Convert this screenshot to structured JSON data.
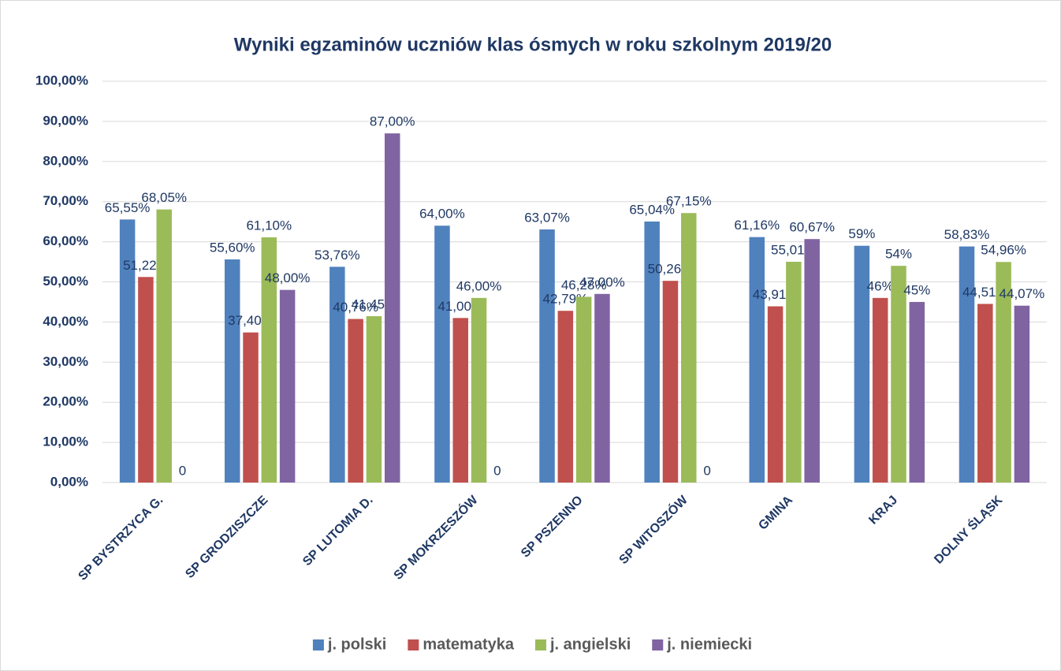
{
  "chart_data": {
    "type": "bar",
    "title": "Wyniki egzaminów uczniów klas ósmych w roku szkolnym 2019/20",
    "categories": [
      "SP BYSTRZYCA G.",
      "SP GRODZISZCZE",
      "SP LUTOMIA D.",
      "SP MOKRZESZÓW",
      "SP PSZENNO",
      "SP WITOSZÓW",
      "GMINA",
      "KRAJ",
      "DOLNY ŚLĄSK"
    ],
    "series": [
      {
        "name": "j. polski",
        "color": "#4f81bd",
        "values": [
          65.55,
          55.6,
          53.76,
          64.0,
          63.07,
          65.04,
          61.16,
          59,
          58.83
        ],
        "value_labels": [
          "65,55%",
          "55,60%",
          "53,76%",
          "64,00%",
          "63,07%",
          "65,04%",
          "61,16%",
          "59%",
          "58,83%"
        ]
      },
      {
        "name": "matematyka",
        "color": "#c0504d",
        "values": [
          51.22,
          37.4,
          40.76,
          41.0,
          42.79,
          50.26,
          43.91,
          46,
          44.51
        ],
        "value_labels": [
          "51,22%",
          "37,40%",
          "40,76%",
          "41,00%",
          "42,79%",
          "50,26%",
          "43,91%",
          "46%",
          "44,51%"
        ]
      },
      {
        "name": "j. angielski",
        "color": "#9bbb59",
        "values": [
          68.05,
          61.1,
          41.45,
          46.0,
          46.28,
          67.15,
          55.01,
          54,
          54.96
        ],
        "value_labels": [
          "68,05%",
          "61,10%",
          "41,45%",
          "46,00%",
          "46,28%",
          "67,15%",
          "55,01%",
          "54%",
          "54,96%"
        ]
      },
      {
        "name": "j. niemiecki",
        "color": "#8064a2",
        "values": [
          0,
          48.0,
          87.0,
          0,
          47.0,
          0,
          60.67,
          45,
          44.07
        ],
        "value_labels": [
          "0",
          "48,00%",
          "87,00%",
          "0",
          "47,00%",
          "0",
          "60,67%",
          "45%",
          "44,07%"
        ]
      }
    ],
    "ylim": [
      0,
      100
    ],
    "yticks": [
      {
        "value": 0,
        "label": "0,00%"
      },
      {
        "value": 10,
        "label": "10,00%"
      },
      {
        "value": 20,
        "label": "20,00%"
      },
      {
        "value": 30,
        "label": "30,00%"
      },
      {
        "value": 40,
        "label": "40,00%"
      },
      {
        "value": 50,
        "label": "50,00%"
      },
      {
        "value": 60,
        "label": "60,00%"
      },
      {
        "value": 70,
        "label": "70,00%"
      },
      {
        "value": 80,
        "label": "80,00%"
      },
      {
        "value": 90,
        "label": "90,00%"
      },
      {
        "value": 100,
        "label": "100,00%"
      }
    ],
    "grid": true,
    "legend": "bottom"
  }
}
